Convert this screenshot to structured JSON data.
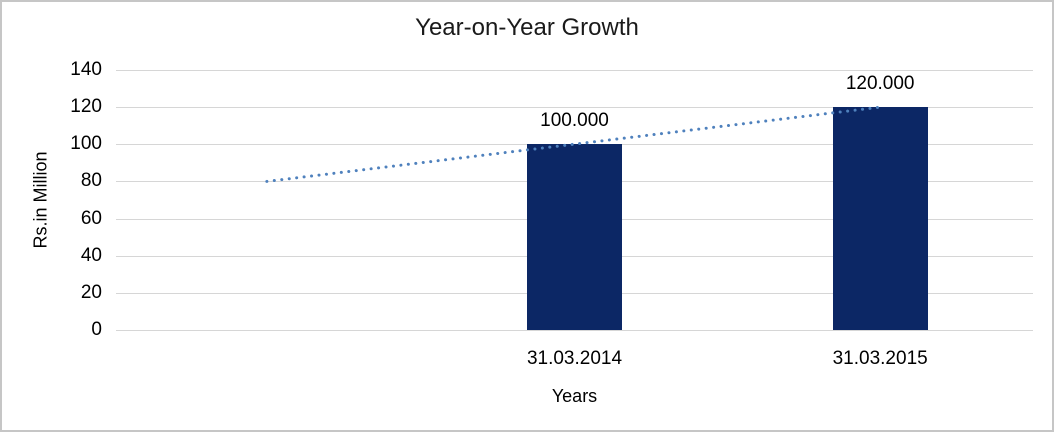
{
  "chart_data": {
    "type": "bar",
    "title": "Year-on-Year Growth",
    "xlabel": "Years",
    "ylabel": "Rs.in Million",
    "ylim": [
      0,
      140
    ],
    "yticks": [
      0,
      20,
      40,
      60,
      80,
      100,
      120,
      140
    ],
    "grid": "horizontal",
    "legend": "none",
    "num_slots": 3,
    "bars": [
      {
        "slot": 1,
        "category": "31.03.2014",
        "value": 100,
        "data_label": "100.000"
      },
      {
        "slot": 2,
        "category": "31.03.2015",
        "value": 120,
        "data_label": "120.000"
      }
    ],
    "trendline": {
      "style": "dotted",
      "points": [
        {
          "slot": 0,
          "value": 80
        },
        {
          "slot": 2,
          "value": 120
        }
      ]
    },
    "colors": {
      "bar": "#0C2765",
      "trend": "#4F81BD",
      "grid": "#D6D6D6",
      "text": "#000000",
      "frame_border": "#C6C6C6"
    }
  }
}
